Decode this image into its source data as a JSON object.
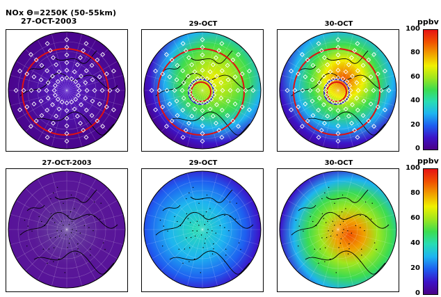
{
  "header": {
    "line1": "NOx Θ=2250K (50-55km)",
    "line2": "27-OCT-2003"
  },
  "top_row": {
    "titles": [
      "",
      "29-OCT",
      "30-OCT"
    ]
  },
  "bottom_row": {
    "titles": [
      "27-OCT-2003",
      "29-OCT",
      "30-OCT"
    ]
  },
  "colorbar": {
    "unit": "ppbv",
    "ticks": [
      "100",
      "80",
      "60",
      "40",
      "20",
      "0"
    ],
    "colors": [
      "#4a0086",
      "#3c14c8",
      "#1e5ef0",
      "#1eb4f0",
      "#28dcb4",
      "#3cdc50",
      "#a0e61e",
      "#f0f000",
      "#f0a000",
      "#f05000",
      "#e61414"
    ]
  },
  "chart_data": {
    "type": "heatmap",
    "title": "NOx Θ=2250K (50-55km)",
    "unit": "ppbv",
    "colorbar_range": [
      0,
      100
    ],
    "panels": [
      {
        "row": "top",
        "date": "27-OCT-2003",
        "content": "mostly low NOx, red vortex-edge contours"
      },
      {
        "row": "top",
        "date": "29-OCT",
        "content": "enhanced NOx band around polar vortex"
      },
      {
        "row": "top",
        "date": "30-OCT",
        "content": "enhanced NOx band around polar vortex"
      },
      {
        "row": "bottom",
        "date": "27-OCT-2003",
        "content": "uniform low NOx"
      },
      {
        "row": "bottom",
        "date": "29-OCT",
        "content": "moderate NOx over high latitudes"
      },
      {
        "row": "bottom",
        "date": "30-OCT",
        "content": "high NOx maximum near pole"
      }
    ]
  }
}
